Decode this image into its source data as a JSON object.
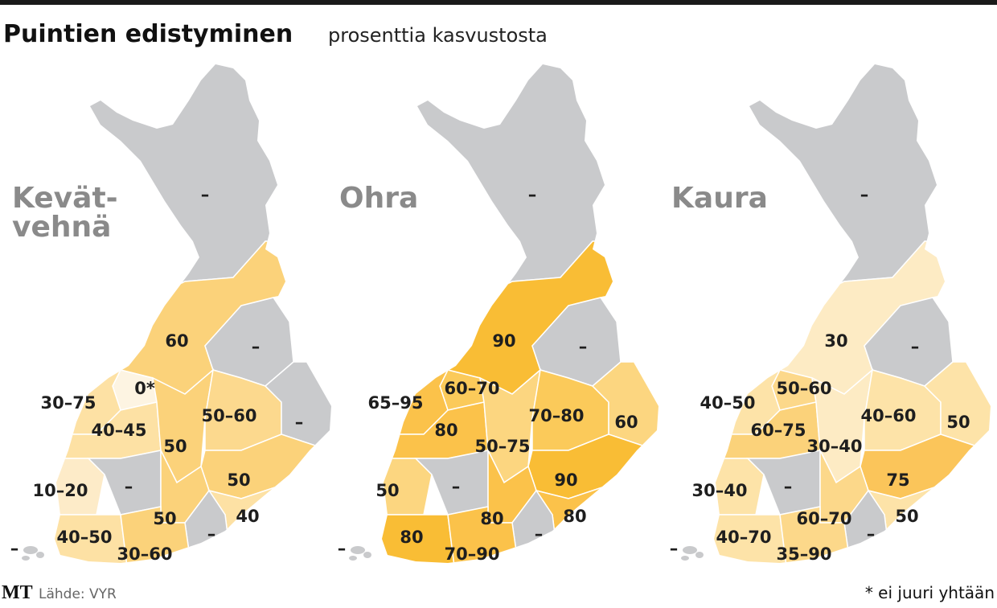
{
  "header": {
    "title": "Puintien edistyminen",
    "subtitle": "prosenttia kasvustosta"
  },
  "maps": [
    {
      "name": [
        "Kevät-",
        "vehnä"
      ],
      "regions": [
        {
          "label": "–",
          "fill": "#c9cacc"
        },
        {
          "label": "60",
          "fill": "#fbd27a"
        },
        {
          "label": "–",
          "fill": "#c9cacc"
        },
        {
          "label": "0*",
          "fill": "#fdf4e2"
        },
        {
          "label": "30–75",
          "fill": "#fde1a4"
        },
        {
          "label": "40–45",
          "fill": "#fde1a4"
        },
        {
          "label": "50",
          "fill": "#fbd27a"
        },
        {
          "label": "50–60",
          "fill": "#fcd98e"
        },
        {
          "label": "–",
          "fill": "#c9cacc"
        },
        {
          "label": "50",
          "fill": "#fbd27a"
        },
        {
          "label": "10–20",
          "fill": "#fdebc8"
        },
        {
          "label": "–",
          "fill": "#c9cacc"
        },
        {
          "label": "50",
          "fill": "#fbd27a"
        },
        {
          "label": "40",
          "fill": "#fde1a4"
        },
        {
          "label": "–",
          "fill": "#c9cacc"
        },
        {
          "label": "40–50",
          "fill": "#fde1a4"
        },
        {
          "label": "30–60",
          "fill": "#fbd27a"
        },
        {
          "label": "–",
          "fill": "#c9cacc"
        }
      ]
    },
    {
      "name": [
        "Ohra"
      ],
      "regions": [
        {
          "label": "–",
          "fill": "#c9cacc"
        },
        {
          "label": "90",
          "fill": "#f9bd35"
        },
        {
          "label": "–",
          "fill": "#c9cacc"
        },
        {
          "label": "60–70",
          "fill": "#fbca5a"
        },
        {
          "label": "65–95",
          "fill": "#fbc24a"
        },
        {
          "label": "80",
          "fill": "#fbc24a"
        },
        {
          "label": "50–75",
          "fill": "#fcd680"
        },
        {
          "label": "70–80",
          "fill": "#fbca5a"
        },
        {
          "label": "60",
          "fill": "#fcd680"
        },
        {
          "label": "90",
          "fill": "#f9bd35"
        },
        {
          "label": "50",
          "fill": "#fcd680"
        },
        {
          "label": "–",
          "fill": "#c9cacc"
        },
        {
          "label": "80",
          "fill": "#fbc24a"
        },
        {
          "label": "80",
          "fill": "#fbc24a"
        },
        {
          "label": "–",
          "fill": "#c9cacc"
        },
        {
          "label": "80",
          "fill": "#f9bd35"
        },
        {
          "label": "70–90",
          "fill": "#fbc24a"
        },
        {
          "label": "–",
          "fill": "#c9cacc"
        }
      ]
    },
    {
      "name": [
        "Kaura"
      ],
      "regions": [
        {
          "label": "–",
          "fill": "#c9cacc"
        },
        {
          "label": "30",
          "fill": "#fdebc4"
        },
        {
          "label": "–",
          "fill": "#c9cacc"
        },
        {
          "label": "50–60",
          "fill": "#fcd88a"
        },
        {
          "label": "40–50",
          "fill": "#fde3a8"
        },
        {
          "label": "60–75",
          "fill": "#fbd27a"
        },
        {
          "label": "30–40",
          "fill": "#fdebc4"
        },
        {
          "label": "40–60",
          "fill": "#fde3a8"
        },
        {
          "label": "50",
          "fill": "#fde3a8"
        },
        {
          "label": "75",
          "fill": "#fbc55a"
        },
        {
          "label": "30–40",
          "fill": "#fde3a8"
        },
        {
          "label": "–",
          "fill": "#c9cacc"
        },
        {
          "label": "60–70",
          "fill": "#fcd88a"
        },
        {
          "label": "50",
          "fill": "#fde3a8"
        },
        {
          "label": "–",
          "fill": "#c9cacc"
        },
        {
          "label": "40–70",
          "fill": "#fde3a8"
        },
        {
          "label": "35–90",
          "fill": "#fcd88a"
        },
        {
          "label": "–",
          "fill": "#c9cacc"
        }
      ]
    }
  ],
  "footer": {
    "logo": "MT",
    "source": "Lähde: VYR",
    "note": "* ei juuri yhtään"
  }
}
